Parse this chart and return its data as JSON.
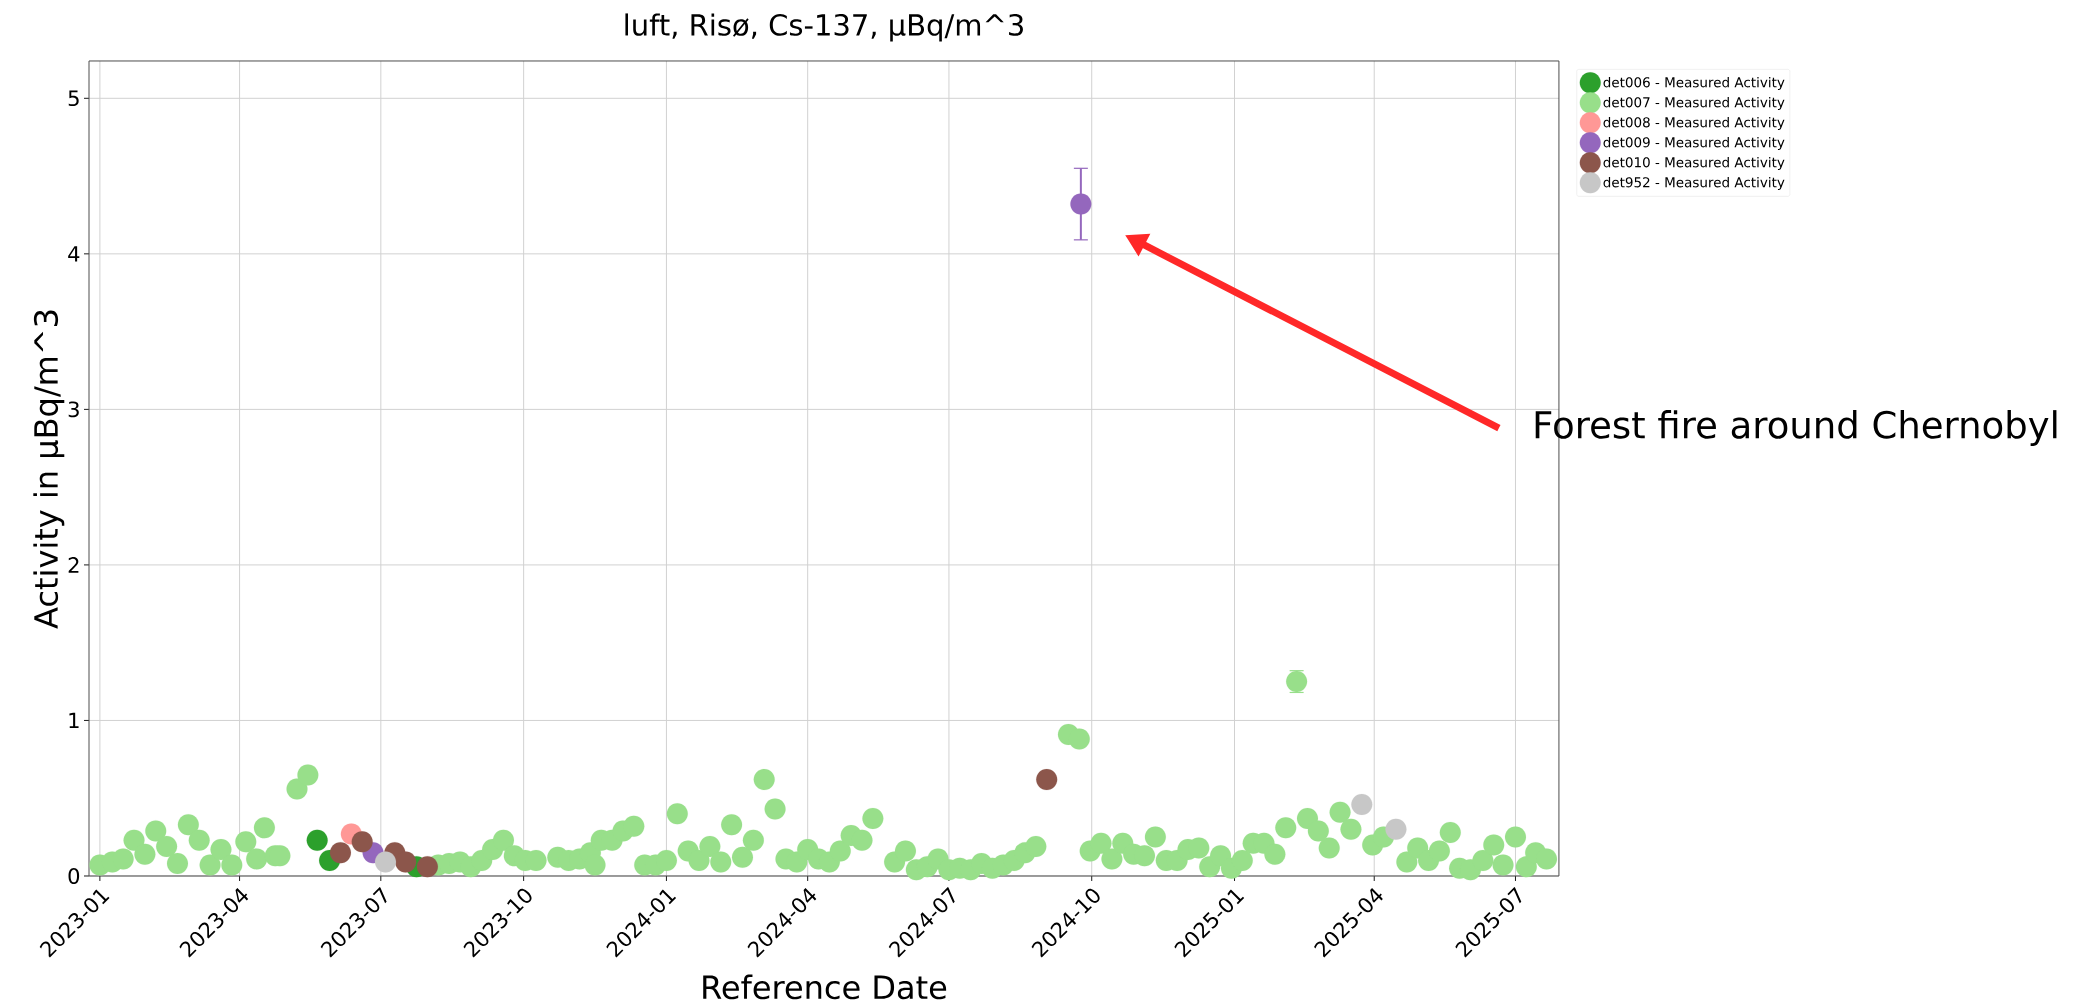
{
  "chart_data": {
    "type": "scatter",
    "title": "luft, Risø, Cs-137, µBq/m^3",
    "xlabel": "Reference Date",
    "ylabel": "Activity in µBq/m^3",
    "xlim": [
      "2022-12-25",
      "2025-07-29"
    ],
    "ylim": [
      0,
      5.24
    ],
    "xticks": [
      "2023-01",
      "2023-04",
      "2023-07",
      "2023-10",
      "2024-01",
      "2024-04",
      "2024-07",
      "2024-10",
      "2025-01",
      "2025-04",
      "2025-07"
    ],
    "yticks": [
      0,
      1,
      2,
      3,
      4,
      5
    ],
    "grid": true,
    "legend": "top right",
    "marker": "circle",
    "annotations": [
      "Forest fire around Chernobyl"
    ],
    "series": [
      {
        "name": "det006 - Measured Activity",
        "color": "#2ca02c",
        "x": [
          "2023-05-21",
          "2023-05-29",
          "2023-07-24"
        ],
        "values": [
          0.23,
          0.1,
          0.06
        ]
      },
      {
        "name": "det007 - Measured Activity",
        "color": "#98df8a",
        "x": [
          "2023-01-01",
          "2023-01-09",
          "2023-01-16",
          "2023-01-23",
          "2023-01-30",
          "2023-02-06",
          "2023-02-13",
          "2023-02-20",
          "2023-02-27",
          "2023-03-06",
          "2023-03-13",
          "2023-03-20",
          "2023-03-27",
          "2023-04-05",
          "2023-04-12",
          "2023-04-17",
          "2023-04-24",
          "2023-04-27",
          "2023-05-08",
          "2023-05-15",
          "2023-08-07",
          "2023-08-14",
          "2023-08-21",
          "2023-08-28",
          "2023-09-04",
          "2023-09-11",
          "2023-09-18",
          "2023-09-25",
          "2023-10-02",
          "2023-10-09",
          "2023-10-23",
          "2023-10-30",
          "2023-11-06",
          "2023-11-13",
          "2023-11-16",
          "2023-11-20",
          "2023-11-27",
          "2023-12-04",
          "2023-12-11",
          "2023-12-18",
          "2023-12-25",
          "2024-01-01",
          "2024-01-08",
          "2024-01-15",
          "2024-01-22",
          "2024-01-29",
          "2024-02-05",
          "2024-02-12",
          "2024-02-19",
          "2024-02-26",
          "2024-03-04",
          "2024-03-11",
          "2024-03-18",
          "2024-03-25",
          "2024-04-01",
          "2024-04-08",
          "2024-04-15",
          "2024-04-22",
          "2024-04-29",
          "2024-05-06",
          "2024-05-13",
          "2024-05-27",
          "2024-06-03",
          "2024-06-10",
          "2024-06-17",
          "2024-06-24",
          "2024-07-01",
          "2024-07-08",
          "2024-07-15",
          "2024-07-22",
          "2024-07-29",
          "2024-08-05",
          "2024-08-12",
          "2024-08-19",
          "2024-08-26",
          "2024-09-16",
          "2024-09-23",
          "2024-09-30",
          "2024-10-07",
          "2024-10-14",
          "2024-10-21",
          "2024-10-28",
          "2024-11-04",
          "2024-11-11",
          "2024-11-18",
          "2024-11-25",
          "2024-12-02",
          "2024-12-09",
          "2024-12-16",
          "2024-12-23",
          "2024-12-30",
          "2025-01-06",
          "2025-01-13",
          "2025-01-20",
          "2025-01-27",
          "2025-02-03",
          "2025-02-10",
          "2025-02-17",
          "2025-02-24",
          "2025-03-03",
          "2025-03-10",
          "2025-03-17",
          "2025-03-31",
          "2025-04-07",
          "2025-04-22",
          "2025-04-29",
          "2025-05-06",
          "2025-05-13",
          "2025-05-20",
          "2025-05-26",
          "2025-06-02",
          "2025-06-10",
          "2025-06-17",
          "2025-06-23",
          "2025-07-01",
          "2025-07-08",
          "2025-07-14",
          "2025-07-21"
        ],
        "values": [
          0.07,
          0.09,
          0.11,
          0.23,
          0.14,
          0.29,
          0.19,
          0.08,
          0.33,
          0.23,
          0.07,
          0.17,
          0.07,
          0.22,
          0.11,
          0.31,
          0.13,
          0.13,
          0.56,
          0.65,
          0.07,
          0.08,
          0.09,
          0.06,
          0.1,
          0.17,
          0.23,
          0.13,
          0.1,
          0.1,
          0.12,
          0.1,
          0.11,
          0.15,
          0.07,
          0.23,
          0.23,
          0.29,
          0.32,
          0.07,
          0.07,
          0.1,
          0.4,
          0.16,
          0.1,
          0.19,
          0.09,
          0.33,
          0.12,
          0.23,
          0.62,
          0.43,
          0.11,
          0.09,
          0.17,
          0.11,
          0.09,
          0.16,
          0.26,
          0.23,
          0.37,
          0.09,
          0.16,
          0.04,
          0.06,
          0.11,
          0.04,
          0.05,
          0.04,
          0.08,
          0.05,
          0.07,
          0.1,
          0.15,
          0.19,
          0.91,
          0.88,
          0.16,
          0.21,
          0.11,
          0.21,
          0.14,
          0.13,
          0.25,
          0.1,
          0.1,
          0.17,
          0.18,
          0.06,
          0.13,
          0.05,
          0.1,
          0.21,
          0.21,
          0.14,
          0.31,
          1.25,
          0.37,
          0.29,
          0.18,
          0.41,
          0.3,
          0.2,
          0.25,
          0.09,
          0.18,
          0.1,
          0.16,
          0.28,
          0.05,
          0.04,
          0.1,
          0.2,
          0.07,
          0.25,
          0.06,
          0.15,
          0.11
        ],
        "errors": [
          null,
          null,
          null,
          null,
          null,
          null,
          null,
          null,
          null,
          null,
          null,
          null,
          null,
          null,
          null,
          null,
          null,
          null,
          null,
          null,
          null,
          null,
          null,
          null,
          null,
          null,
          null,
          null,
          null,
          null,
          null,
          null,
          null,
          null,
          null,
          null,
          null,
          null,
          null,
          null,
          null,
          null,
          null,
          null,
          null,
          null,
          null,
          null,
          null,
          null,
          null,
          null,
          null,
          null,
          null,
          null,
          null,
          null,
          null,
          null,
          null,
          null,
          null,
          null,
          null,
          null,
          null,
          null,
          null,
          null,
          null,
          null,
          null,
          null,
          null,
          0.03,
          0.03,
          null,
          null,
          null,
          null,
          null,
          null,
          null,
          null,
          null,
          null,
          null,
          null,
          null,
          null,
          null,
          null,
          null,
          null,
          null,
          0.07,
          null,
          null,
          null,
          null,
          null,
          null,
          null,
          null,
          null,
          null,
          null,
          null,
          null,
          null,
          null,
          null,
          null,
          null,
          null,
          null,
          null
        ]
      },
      {
        "name": "det008 - Measured Activity",
        "color": "#ff9896",
        "x": [
          "2023-06-12"
        ],
        "values": [
          0.27
        ]
      },
      {
        "name": "det009 - Measured Activity",
        "color": "#9467bd",
        "x": [
          "2023-06-26",
          "2024-09-24"
        ],
        "values": [
          0.15,
          4.32
        ],
        "errors": [
          null,
          [
            4.09,
            4.55
          ]
        ]
      },
      {
        "name": "det010 - Measured Activity",
        "color": "#8c564b",
        "x": [
          "2023-06-05",
          "2023-06-19",
          "2023-07-10",
          "2023-07-17",
          "2023-07-31",
          "2024-09-02"
        ],
        "values": [
          0.15,
          0.22,
          0.15,
          0.09,
          0.06,
          0.62
        ]
      },
      {
        "name": "det952 - Measured Activity",
        "color": "#c7c7c7",
        "x": [
          "2023-07-04",
          "2025-03-24",
          "2025-04-15"
        ],
        "values": [
          0.09,
          0.46,
          0.3
        ]
      }
    ]
  }
}
